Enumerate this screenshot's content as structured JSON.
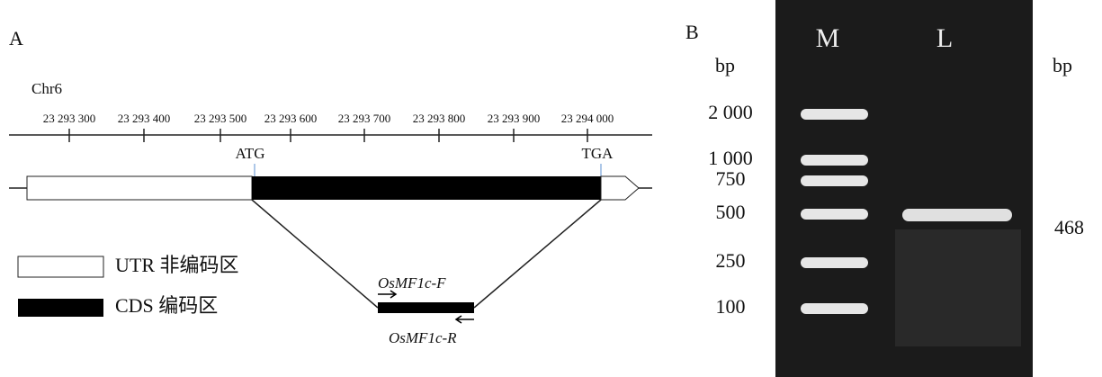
{
  "panel_a": {
    "label": "A",
    "chromosome": "Chr6",
    "ticks": [
      "23 293 300",
      "23 293 400",
      "23 293 500",
      "23 293 600",
      "23 293 700",
      "23 293 800",
      "23 293 900",
      "23 294 000"
    ],
    "start_codon": "ATG",
    "stop_codon": "TGA",
    "primer_forward": "OsMF1c-F",
    "primer_reverse": "OsMF1c-R",
    "legend": [
      {
        "label": "UTR 非编码区"
      },
      {
        "label": "CDS 编码区"
      }
    ]
  },
  "panel_b": {
    "label": "B",
    "unit_left": "bp",
    "unit_right": "bp",
    "lanes": [
      "M",
      "L"
    ],
    "marker_sizes": [
      "2 000",
      "1 000",
      "750",
      "500",
      "250",
      "100"
    ],
    "product_size": "468"
  }
}
